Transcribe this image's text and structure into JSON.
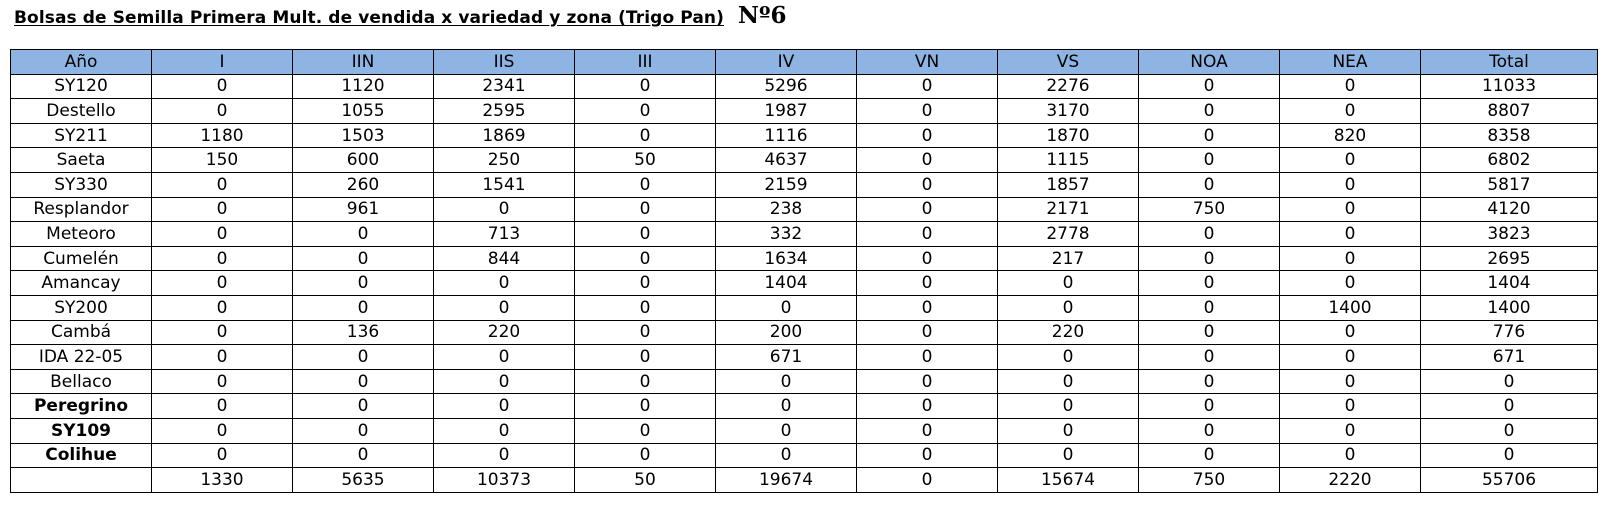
{
  "title": "Bolsas de Semilla Primera Mult. de vendida x variedad y zona (Trigo Pan)",
  "number": "Nº6",
  "table": {
    "headers": [
      "Año",
      "I",
      "IIN",
      "IIS",
      "III",
      "IV",
      "VN",
      "VS",
      "NOA",
      "NEA",
      "Total"
    ],
    "rows": [
      {
        "name": "SY120",
        "bold": false,
        "values": [
          "0",
          "1120",
          "2341",
          "0",
          "5296",
          "0",
          "2276",
          "0",
          "0",
          "11033"
        ]
      },
      {
        "name": "Destello",
        "bold": false,
        "values": [
          "0",
          "1055",
          "2595",
          "0",
          "1987",
          "0",
          "3170",
          "0",
          "0",
          "8807"
        ]
      },
      {
        "name": "SY211",
        "bold": false,
        "values": [
          "1180",
          "1503",
          "1869",
          "0",
          "1116",
          "0",
          "1870",
          "0",
          "820",
          "8358"
        ]
      },
      {
        "name": "Saeta",
        "bold": false,
        "values": [
          "150",
          "600",
          "250",
          "50",
          "4637",
          "0",
          "1115",
          "0",
          "0",
          "6802"
        ]
      },
      {
        "name": "SY330",
        "bold": false,
        "values": [
          "0",
          "260",
          "1541",
          "0",
          "2159",
          "0",
          "1857",
          "0",
          "0",
          "5817"
        ]
      },
      {
        "name": "Resplandor",
        "bold": false,
        "values": [
          "0",
          "961",
          "0",
          "0",
          "238",
          "0",
          "2171",
          "750",
          "0",
          "4120"
        ]
      },
      {
        "name": "Meteoro",
        "bold": false,
        "values": [
          "0",
          "0",
          "713",
          "0",
          "332",
          "0",
          "2778",
          "0",
          "0",
          "3823"
        ]
      },
      {
        "name": "Cumelén",
        "bold": false,
        "values": [
          "0",
          "0",
          "844",
          "0",
          "1634",
          "0",
          "217",
          "0",
          "0",
          "2695"
        ]
      },
      {
        "name": "Amancay",
        "bold": false,
        "values": [
          "0",
          "0",
          "0",
          "0",
          "1404",
          "0",
          "0",
          "0",
          "0",
          "1404"
        ]
      },
      {
        "name": "SY200",
        "bold": false,
        "values": [
          "0",
          "0",
          "0",
          "0",
          "0",
          "0",
          "0",
          "0",
          "1400",
          "1400"
        ]
      },
      {
        "name": "Cambá",
        "bold": false,
        "values": [
          "0",
          "136",
          "220",
          "0",
          "200",
          "0",
          "220",
          "0",
          "0",
          "776"
        ]
      },
      {
        "name": "IDA 22-05",
        "bold": false,
        "values": [
          "0",
          "0",
          "0",
          "0",
          "671",
          "0",
          "0",
          "0",
          "0",
          "671"
        ]
      },
      {
        "name": "Bellaco",
        "bold": false,
        "values": [
          "0",
          "0",
          "0",
          "0",
          "0",
          "0",
          "0",
          "0",
          "0",
          "0"
        ]
      },
      {
        "name": "Peregrino",
        "bold": true,
        "values": [
          "0",
          "0",
          "0",
          "0",
          "0",
          "0",
          "0",
          "0",
          "0",
          "0"
        ]
      },
      {
        "name": "SY109",
        "bold": true,
        "values": [
          "0",
          "0",
          "0",
          "0",
          "0",
          "0",
          "0",
          "0",
          "0",
          "0"
        ]
      },
      {
        "name": "Colihue",
        "bold": true,
        "values": [
          "0",
          "0",
          "0",
          "0",
          "0",
          "0",
          "0",
          "0",
          "0",
          "0"
        ]
      }
    ],
    "totals": [
      "",
      "1330",
      "5635",
      "10373",
      "50",
      "19674",
      "0",
      "15674",
      "750",
      "2220",
      "55706"
    ]
  },
  "colors": {
    "header_background": "#8db4e2",
    "border": "#000000"
  }
}
